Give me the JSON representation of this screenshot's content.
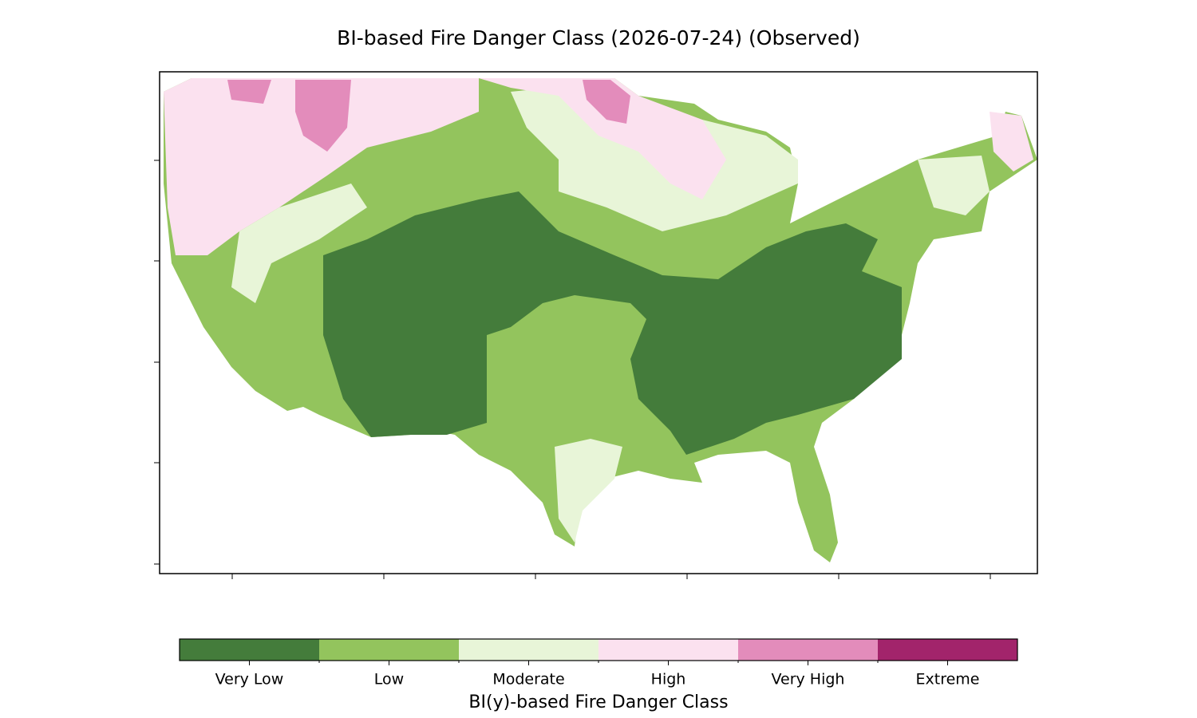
{
  "title": "BI-based Fire Danger Class (2026-07-24) (Observed)",
  "colorbar": {
    "label": "BI(y)-based Fire Danger Class",
    "classes": [
      {
        "name": "Very Low",
        "color": "#447c3b"
      },
      {
        "name": "Low",
        "color": "#93c45d"
      },
      {
        "name": "Moderate",
        "color": "#e8f5d8"
      },
      {
        "name": "High",
        "color": "#fbe1ef"
      },
      {
        "name": "Very High",
        "color": "#e38cbb"
      },
      {
        "name": "Extreme",
        "color": "#a2246b"
      }
    ]
  }
}
